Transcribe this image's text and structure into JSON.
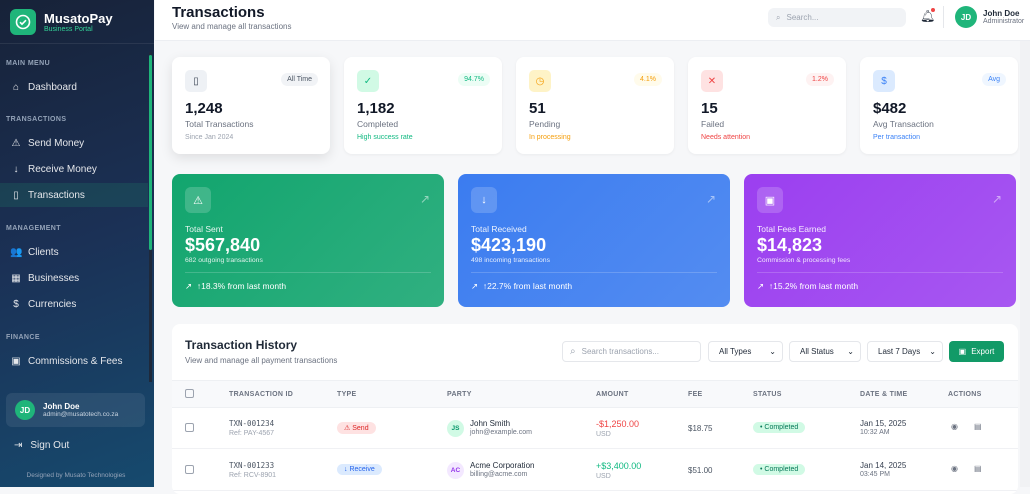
{
  "brand": {
    "name": "MusatoPay",
    "subtitle": "Business Portal"
  },
  "sidebar": {
    "sections": [
      {
        "title": "MAIN MENU",
        "items": [
          {
            "label": "Dashboard",
            "icon": "home-icon"
          }
        ]
      },
      {
        "title": "TRANSACTIONS",
        "items": [
          {
            "label": "Send Money",
            "icon": "send-icon"
          },
          {
            "label": "Receive Money",
            "icon": "arrow-down-icon"
          },
          {
            "label": "Transactions",
            "icon": "clipboard-icon",
            "active": true
          }
        ]
      },
      {
        "title": "MANAGEMENT",
        "items": [
          {
            "label": "Clients",
            "icon": "users-icon"
          },
          {
            "label": "Businesses",
            "icon": "building-icon"
          },
          {
            "label": "Currencies",
            "icon": "dollar-circle-icon"
          }
        ]
      },
      {
        "title": "FINANCE",
        "items": [
          {
            "label": "Commissions & Fees",
            "icon": "coins-icon"
          }
        ]
      }
    ],
    "user": {
      "initials": "JD",
      "name": "John Doe",
      "email": "admin@musatotech.co.za"
    },
    "sign_out": "Sign Out",
    "credit": "Designed by Musato Technologies"
  },
  "header": {
    "title": "Transactions",
    "subtitle": "View and manage all transactions",
    "search_placeholder": "Search...",
    "user": {
      "initials": "JD",
      "name": "John Doe",
      "role": "Administrator"
    }
  },
  "stats": [
    {
      "value": "1,248",
      "label": "Total Transactions",
      "note": "Since Jan 2024",
      "badge": "All Time",
      "icon": "clipboard-icon"
    },
    {
      "value": "1,182",
      "label": "Completed",
      "note": "High success rate",
      "badge": "94.7%",
      "icon": "check-circle-icon"
    },
    {
      "value": "51",
      "label": "Pending",
      "note": "In processing",
      "badge": "4.1%",
      "icon": "clock-icon"
    },
    {
      "value": "15",
      "label": "Failed",
      "note": "Needs attention",
      "badge": "1.2%",
      "icon": "x-icon"
    },
    {
      "value": "$482",
      "label": "Avg Transaction",
      "note": "Per transaction",
      "badge": "Avg",
      "icon": "dollar-icon"
    }
  ],
  "summary": [
    {
      "label": "Total Sent",
      "value": "$567,840",
      "sub": "682 outgoing transactions",
      "change": "↑18.3% from last month",
      "color": "#12a56e"
    },
    {
      "label": "Total Received",
      "value": "$423,190",
      "sub": "498 incoming transactions",
      "change": "↑22.7% from last month",
      "color": "#3b7cf0"
    },
    {
      "label": "Total Fees Earned",
      "value": "$14,823",
      "sub": "Commission & processing fees",
      "change": "↑15.2% from last month",
      "color": "#9b3ff0"
    }
  ],
  "history": {
    "title": "Transaction History",
    "subtitle": "View and manage all payment transactions",
    "search_placeholder": "Search transactions...",
    "filters": {
      "type": "All Types",
      "status": "All Status",
      "range": "Last 7 Days"
    },
    "export": "Export",
    "columns": [
      "TRANSACTION ID",
      "TYPE",
      "PARTY",
      "AMOUNT",
      "FEE",
      "STATUS",
      "DATE & TIME",
      "ACTIONS"
    ],
    "rows": [
      {
        "id": "TXN-001234",
        "ref": "Ref: PAY-4567",
        "type": "Send",
        "initials": "JS",
        "party": "John Smith",
        "email": "john@example.com",
        "amount": "-$1,250.00",
        "currency": "USD",
        "fee": "$18.75",
        "status": "Completed",
        "date": "Jan 15, 2025",
        "time": "10:32 AM"
      },
      {
        "id": "TXN-001233",
        "ref": "Ref: RCV-8901",
        "type": "Receive",
        "initials": "AC",
        "party": "Acme Corporation",
        "email": "billing@acme.com",
        "amount": "+$3,400.00",
        "currency": "USD",
        "fee": "$51.00",
        "status": "Completed",
        "date": "Jan 14, 2025",
        "time": "03:45 PM"
      }
    ]
  }
}
